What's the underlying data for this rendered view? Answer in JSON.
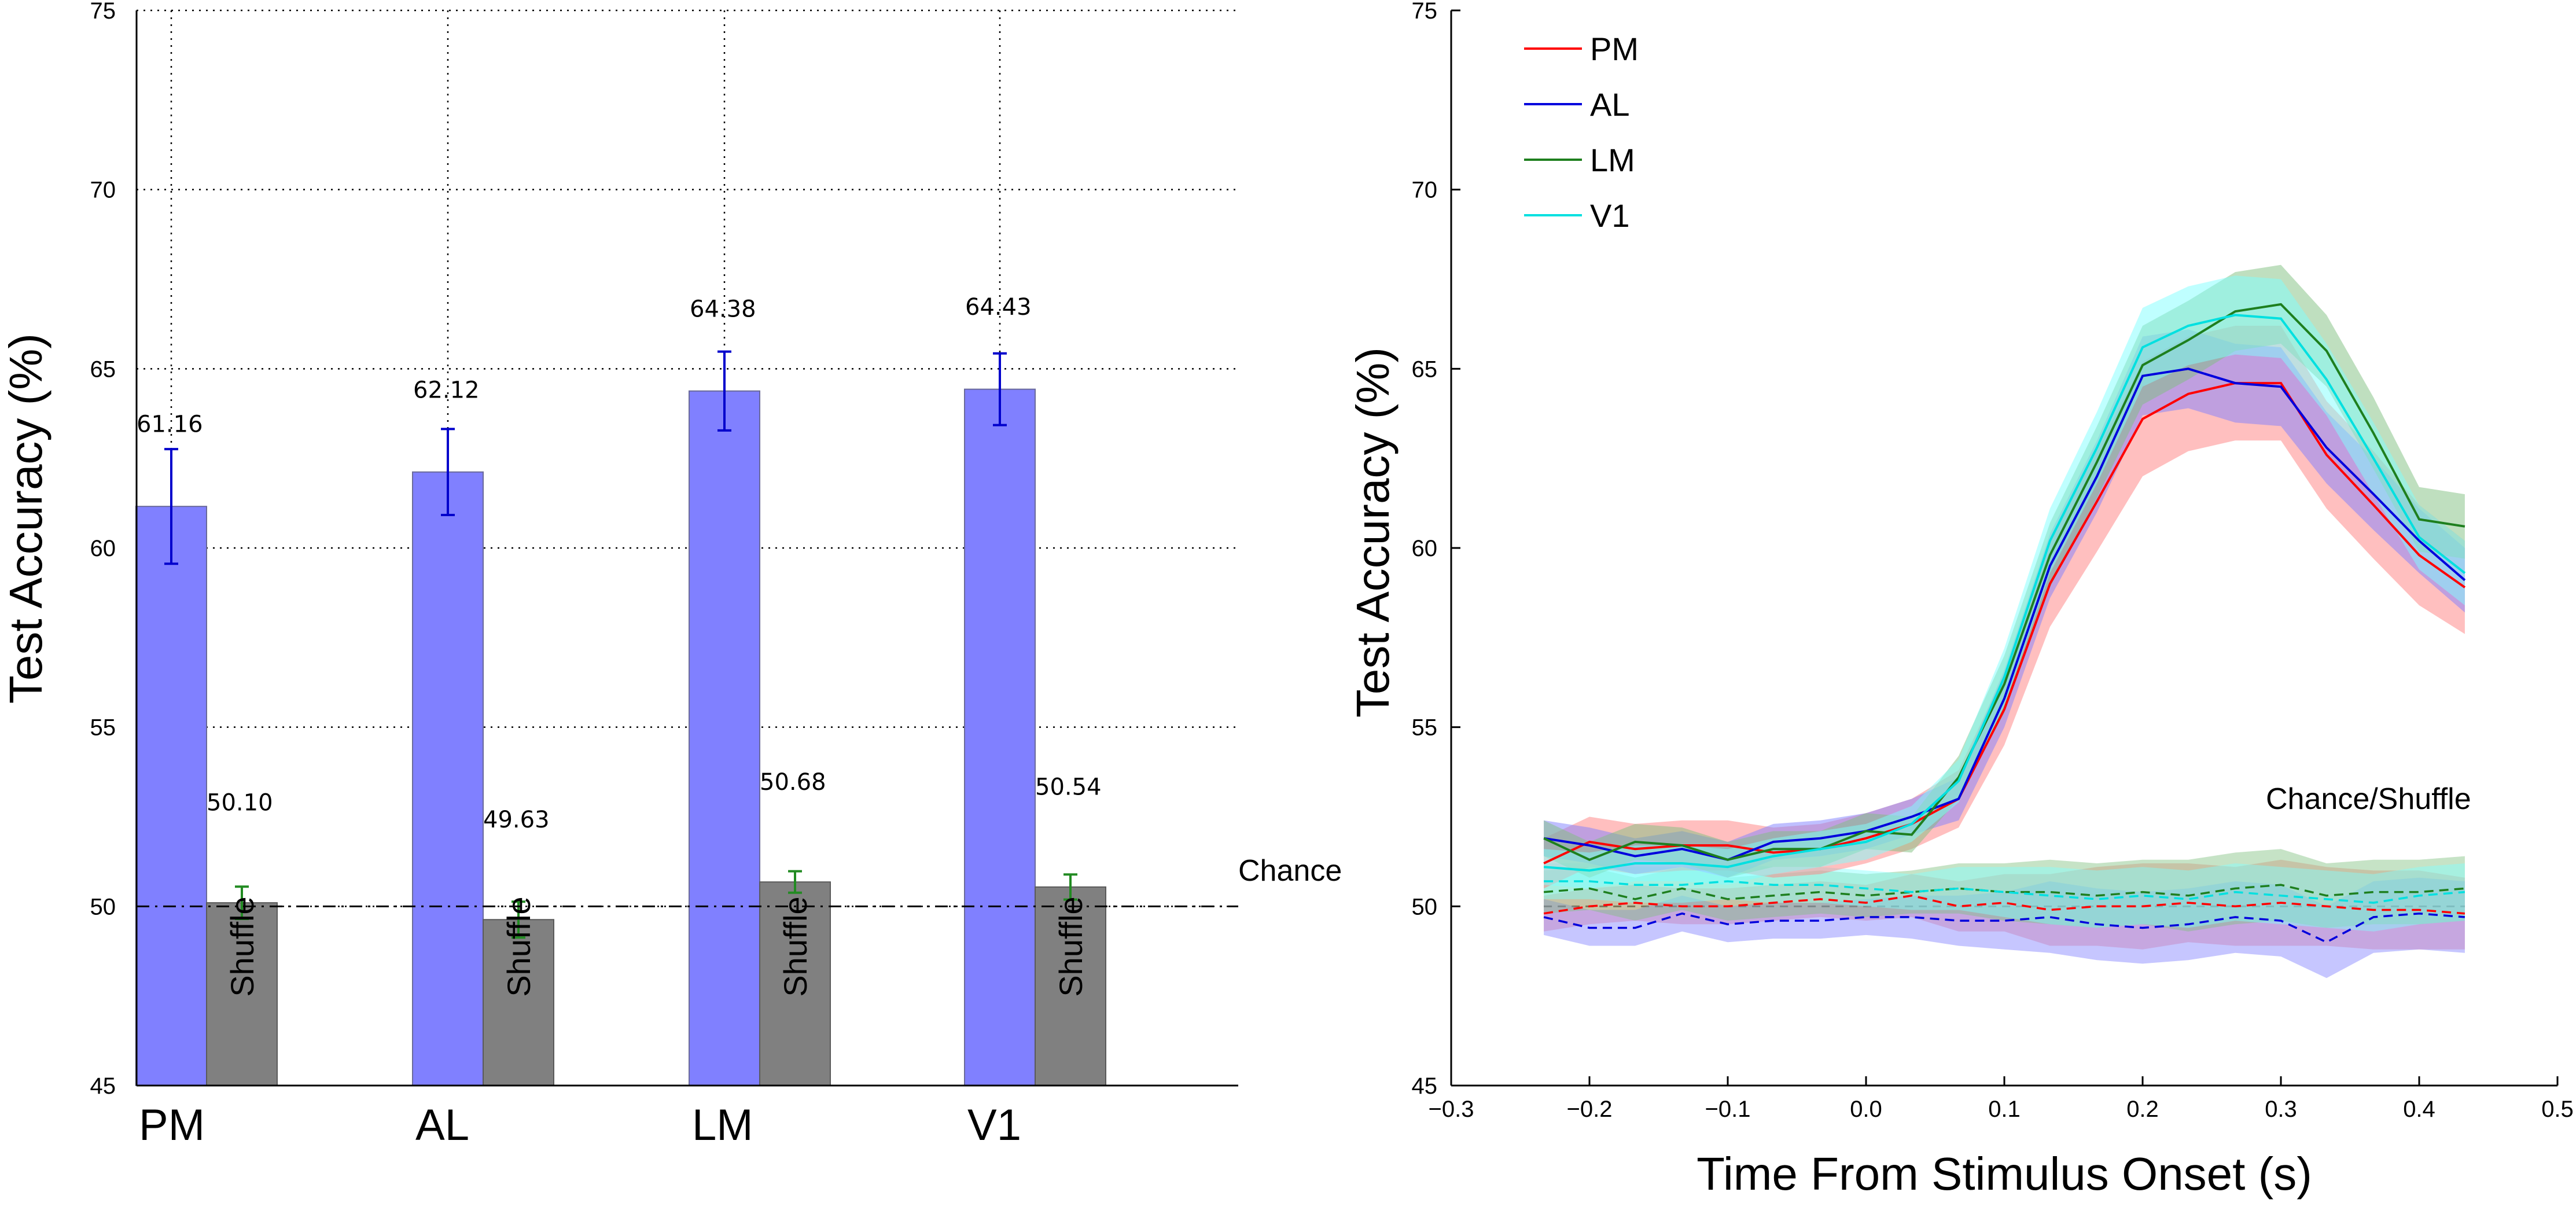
{
  "chart_data": [
    {
      "type": "bar",
      "title": "",
      "xlabel": "",
      "ylabel": "Test Accuracy (%)",
      "ylim": [
        45,
        75
      ],
      "yticks": [
        "45",
        "50",
        "55",
        "60",
        "65",
        "70",
        "75"
      ],
      "grid": true,
      "categories": [
        "PM",
        "AL",
        "LM",
        "V1"
      ],
      "series": [
        {
          "values": [
            61.16,
            62.12,
            64.38,
            64.43
          ],
          "errors": [
            1.6,
            1.2,
            1.1,
            1.0
          ],
          "value_labels": [
            "61.16",
            "62.12",
            "64.38",
            "64.43"
          ],
          "color": "#8080ff",
          "error_color": "#0000cc"
        },
        {
          "name": "Shuffle",
          "values": [
            50.1,
            49.63,
            50.68,
            50.54
          ],
          "errors": [
            0.45,
            0.5,
            0.3,
            0.35
          ],
          "value_labels": [
            "50.10",
            "49.63",
            "50.68",
            "50.54"
          ],
          "color": "#808080",
          "error_color": "#228b22"
        }
      ],
      "reference_line": {
        "value": 50,
        "label": "Chance",
        "style": "dash-dot"
      }
    },
    {
      "type": "line",
      "title": "",
      "xlabel": "Time From Stimulus Onset (s)",
      "ylabel": "Test Accuracy (%)",
      "xlim": [
        -0.3,
        0.5
      ],
      "ylim": [
        45,
        75
      ],
      "xticks": [
        "−0.3",
        "−0.2",
        "−0.1",
        "0.0",
        "0.1",
        "0.2",
        "0.3",
        "0.4",
        "0.5"
      ],
      "yticks": [
        "45",
        "50",
        "55",
        "60",
        "65",
        "70",
        "75"
      ],
      "grid": false,
      "legend_position": "top-left",
      "annotation": "Chance/Shuffle",
      "reference_line": {
        "value": 50,
        "style": "dashed"
      },
      "x": [
        -0.233,
        -0.2,
        -0.167,
        -0.133,
        -0.1,
        -0.067,
        -0.033,
        0.0,
        0.033,
        0.067,
        0.1,
        0.133,
        0.167,
        0.2,
        0.233,
        0.267,
        0.3,
        0.333,
        0.367,
        0.4,
        0.433
      ],
      "series": [
        {
          "name": "PM",
          "color": "#ff0000",
          "band_color": "#ff8080",
          "values": [
            51.2,
            51.8,
            51.6,
            51.7,
            51.7,
            51.5,
            51.6,
            51.9,
            52.3,
            53.0,
            55.5,
            59.0,
            61.3,
            63.6,
            64.3,
            64.6,
            64.6,
            62.6,
            61.2,
            59.8,
            58.9
          ],
          "band": [
            0.7,
            0.7,
            0.7,
            0.7,
            0.7,
            0.7,
            0.7,
            0.7,
            0.7,
            0.8,
            1.0,
            1.2,
            1.4,
            1.6,
            1.6,
            1.6,
            1.6,
            1.5,
            1.5,
            1.4,
            1.3
          ],
          "shuffle_values": [
            49.8,
            50.0,
            50.1,
            50.0,
            50.0,
            50.1,
            50.2,
            50.1,
            50.3,
            50.0,
            50.1,
            49.9,
            50.0,
            50.0,
            50.1,
            50.0,
            50.1,
            50.0,
            49.9,
            49.9,
            49.8
          ],
          "shuffle_band": [
            0.5,
            0.5,
            0.5,
            0.5,
            0.5,
            0.5,
            0.5,
            0.5,
            0.6,
            0.7,
            0.8,
            1.0,
            1.1,
            1.2,
            1.1,
            1.1,
            1.2,
            1.1,
            1.1,
            1.1,
            1.0
          ]
        },
        {
          "name": "AL",
          "color": "#0000dd",
          "band_color": "#8080ff",
          "values": [
            51.9,
            51.7,
            51.4,
            51.6,
            51.3,
            51.8,
            51.9,
            52.1,
            52.5,
            53.0,
            55.8,
            59.5,
            62.0,
            64.8,
            65.0,
            64.6,
            64.5,
            62.8,
            61.5,
            60.2,
            59.1
          ],
          "band": [
            0.5,
            0.5,
            0.5,
            0.5,
            0.5,
            0.5,
            0.5,
            0.5,
            0.5,
            0.6,
            0.8,
            0.9,
            1.0,
            1.1,
            1.1,
            1.1,
            1.1,
            1.0,
            1.0,
            0.9,
            0.9
          ],
          "shuffle_values": [
            49.7,
            49.4,
            49.4,
            49.8,
            49.5,
            49.6,
            49.6,
            49.7,
            49.7,
            49.6,
            49.6,
            49.7,
            49.5,
            49.4,
            49.5,
            49.7,
            49.6,
            49.0,
            49.7,
            49.8,
            49.7
          ],
          "shuffle_band": [
            0.5,
            0.5,
            0.5,
            0.5,
            0.5,
            0.5,
            0.5,
            0.5,
            0.6,
            0.7,
            0.8,
            1.0,
            1.0,
            1.0,
            1.0,
            1.0,
            1.0,
            1.0,
            1.0,
            1.0,
            1.0
          ]
        },
        {
          "name": "LM",
          "color": "#1e7f1e",
          "band_color": "#80c080",
          "values": [
            51.9,
            51.3,
            51.8,
            51.7,
            51.3,
            51.6,
            51.6,
            52.1,
            52.0,
            53.6,
            56.2,
            59.8,
            62.4,
            65.1,
            65.8,
            66.6,
            66.8,
            65.5,
            63.2,
            60.8,
            60.6
          ],
          "band": [
            0.5,
            0.5,
            0.5,
            0.5,
            0.5,
            0.5,
            0.5,
            0.5,
            0.5,
            0.6,
            0.8,
            0.9,
            1.0,
            1.1,
            1.1,
            1.1,
            1.1,
            1.0,
            1.0,
            0.9,
            0.9
          ],
          "shuffle_values": [
            50.4,
            50.5,
            50.2,
            50.5,
            50.2,
            50.3,
            50.4,
            50.3,
            50.4,
            50.5,
            50.4,
            50.4,
            50.3,
            50.4,
            50.3,
            50.5,
            50.6,
            50.3,
            50.4,
            50.4,
            50.5
          ],
          "shuffle_band": [
            0.6,
            0.6,
            0.6,
            0.6,
            0.6,
            0.6,
            0.6,
            0.6,
            0.6,
            0.7,
            0.8,
            0.9,
            0.9,
            0.9,
            1.0,
            1.0,
            1.0,
            0.9,
            0.9,
            0.9,
            0.9
          ]
        },
        {
          "name": "V1",
          "color": "#00e0e0",
          "band_color": "#80ffff",
          "values": [
            51.1,
            51.0,
            51.2,
            51.2,
            51.1,
            51.4,
            51.6,
            51.8,
            52.3,
            53.5,
            56.4,
            60.2,
            62.8,
            65.6,
            66.2,
            66.5,
            66.4,
            64.7,
            62.5,
            60.3,
            59.3
          ],
          "band": [
            0.5,
            0.5,
            0.5,
            0.5,
            0.5,
            0.5,
            0.5,
            0.5,
            0.5,
            0.6,
            0.8,
            0.9,
            1.0,
            1.1,
            1.1,
            1.1,
            1.1,
            1.0,
            1.0,
            0.9,
            0.9
          ],
          "shuffle_values": [
            50.7,
            50.7,
            50.6,
            50.6,
            50.7,
            50.6,
            50.6,
            50.5,
            50.4,
            50.5,
            50.4,
            50.3,
            50.2,
            50.3,
            50.2,
            50.4,
            50.3,
            50.2,
            50.1,
            50.3,
            50.4
          ],
          "shuffle_band": [
            0.5,
            0.5,
            0.5,
            0.5,
            0.5,
            0.5,
            0.5,
            0.5,
            0.5,
            0.6,
            0.7,
            0.8,
            0.8,
            0.8,
            0.8,
            0.8,
            0.8,
            0.8,
            0.8,
            0.8,
            0.8
          ]
        }
      ]
    }
  ]
}
